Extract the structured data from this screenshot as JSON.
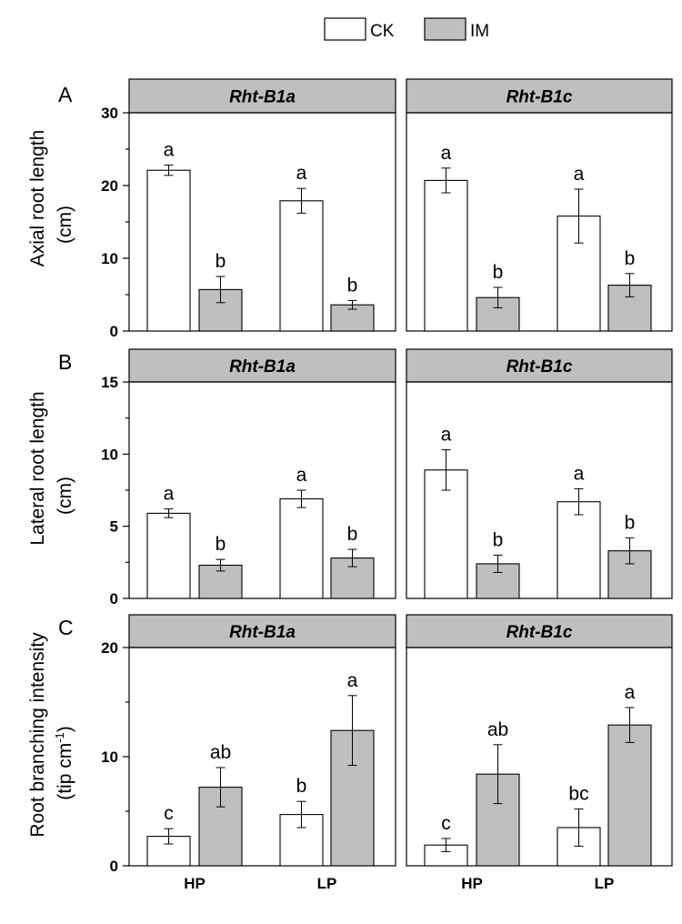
{
  "colors": {
    "CK": "#ffffff",
    "IM": "#bfbfbf",
    "strip": "#bfbfbf",
    "stroke": "#000000"
  },
  "legend": [
    {
      "key": "CK",
      "label": "CK"
    },
    {
      "key": "IM",
      "label": "IM"
    }
  ],
  "chart_data": [
    {
      "type": "bar",
      "panel_letter": "A",
      "ylabel_line1": "Axial root length",
      "ylabel_line2": "(cm)",
      "ylim": [
        0,
        30
      ],
      "yticks": [
        0,
        10,
        20,
        30
      ],
      "yminor": 5,
      "categories": [
        "HP",
        "LP"
      ],
      "facets": [
        {
          "title": "Rht-B1a",
          "series": [
            {
              "name": "CK",
              "values": [
                22.1,
                17.9
              ],
              "errors": [
                0.7,
                1.7
              ],
              "letters": [
                "a",
                "a"
              ]
            },
            {
              "name": "IM",
              "values": [
                5.7,
                3.6
              ],
              "errors": [
                1.8,
                0.6
              ],
              "letters": [
                "b",
                "b"
              ]
            }
          ]
        },
        {
          "title": "Rht-B1c",
          "series": [
            {
              "name": "CK",
              "values": [
                20.7,
                15.8
              ],
              "errors": [
                1.7,
                3.7
              ],
              "letters": [
                "a",
                "a"
              ]
            },
            {
              "name": "IM",
              "values": [
                4.6,
                6.3
              ],
              "errors": [
                1.4,
                1.6
              ],
              "letters": [
                "b",
                "b"
              ]
            }
          ]
        }
      ]
    },
    {
      "type": "bar",
      "panel_letter": "B",
      "ylabel_line1": "Lateral root length",
      "ylabel_line2": "(cm)",
      "ylim": [
        0,
        15
      ],
      "yticks": [
        0,
        5,
        10,
        15
      ],
      "yminor": 2.5,
      "categories": [
        "HP",
        "LP"
      ],
      "facets": [
        {
          "title": "Rht-B1a",
          "series": [
            {
              "name": "CK",
              "values": [
                5.9,
                6.9
              ],
              "errors": [
                0.3,
                0.6
              ],
              "letters": [
                "a",
                "a"
              ]
            },
            {
              "name": "IM",
              "values": [
                2.3,
                2.8
              ],
              "errors": [
                0.4,
                0.6
              ],
              "letters": [
                "b",
                "b"
              ]
            }
          ]
        },
        {
          "title": "Rht-B1c",
          "series": [
            {
              "name": "CK",
              "values": [
                8.9,
                6.7
              ],
              "errors": [
                1.4,
                0.9
              ],
              "letters": [
                "a",
                "a"
              ]
            },
            {
              "name": "IM",
              "values": [
                2.4,
                3.3
              ],
              "errors": [
                0.6,
                0.9
              ],
              "letters": [
                "b",
                "b"
              ]
            }
          ]
        }
      ]
    },
    {
      "type": "bar",
      "panel_letter": "C",
      "ylabel_line1": "Root branching intensity",
      "ylabel_line2": "(tip cm",
      "ylabel_sup": "-1",
      "ylabel_close": ")",
      "ylim": [
        0,
        20
      ],
      "yticks": [
        0,
        10,
        20
      ],
      "yminor": 5,
      "categories": [
        "HP",
        "LP"
      ],
      "xlabels": [
        "HP",
        "LP"
      ],
      "facets": [
        {
          "title": "Rht-B1a",
          "series": [
            {
              "name": "CK",
              "values": [
                2.7,
                4.7
              ],
              "errors": [
                0.7,
                1.2
              ],
              "letters": [
                "c",
                "b"
              ]
            },
            {
              "name": "IM",
              "values": [
                7.2,
                12.4
              ],
              "errors": [
                1.8,
                3.2
              ],
              "letters": [
                "ab",
                "a"
              ]
            }
          ]
        },
        {
          "title": "Rht-B1c",
          "series": [
            {
              "name": "CK",
              "values": [
                1.9,
                3.5
              ],
              "errors": [
                0.6,
                1.7
              ],
              "letters": [
                "c",
                "bc"
              ]
            },
            {
              "name": "IM",
              "values": [
                8.4,
                12.9
              ],
              "errors": [
                2.7,
                1.6
              ],
              "letters": [
                "ab",
                "a"
              ]
            }
          ]
        }
      ]
    }
  ]
}
